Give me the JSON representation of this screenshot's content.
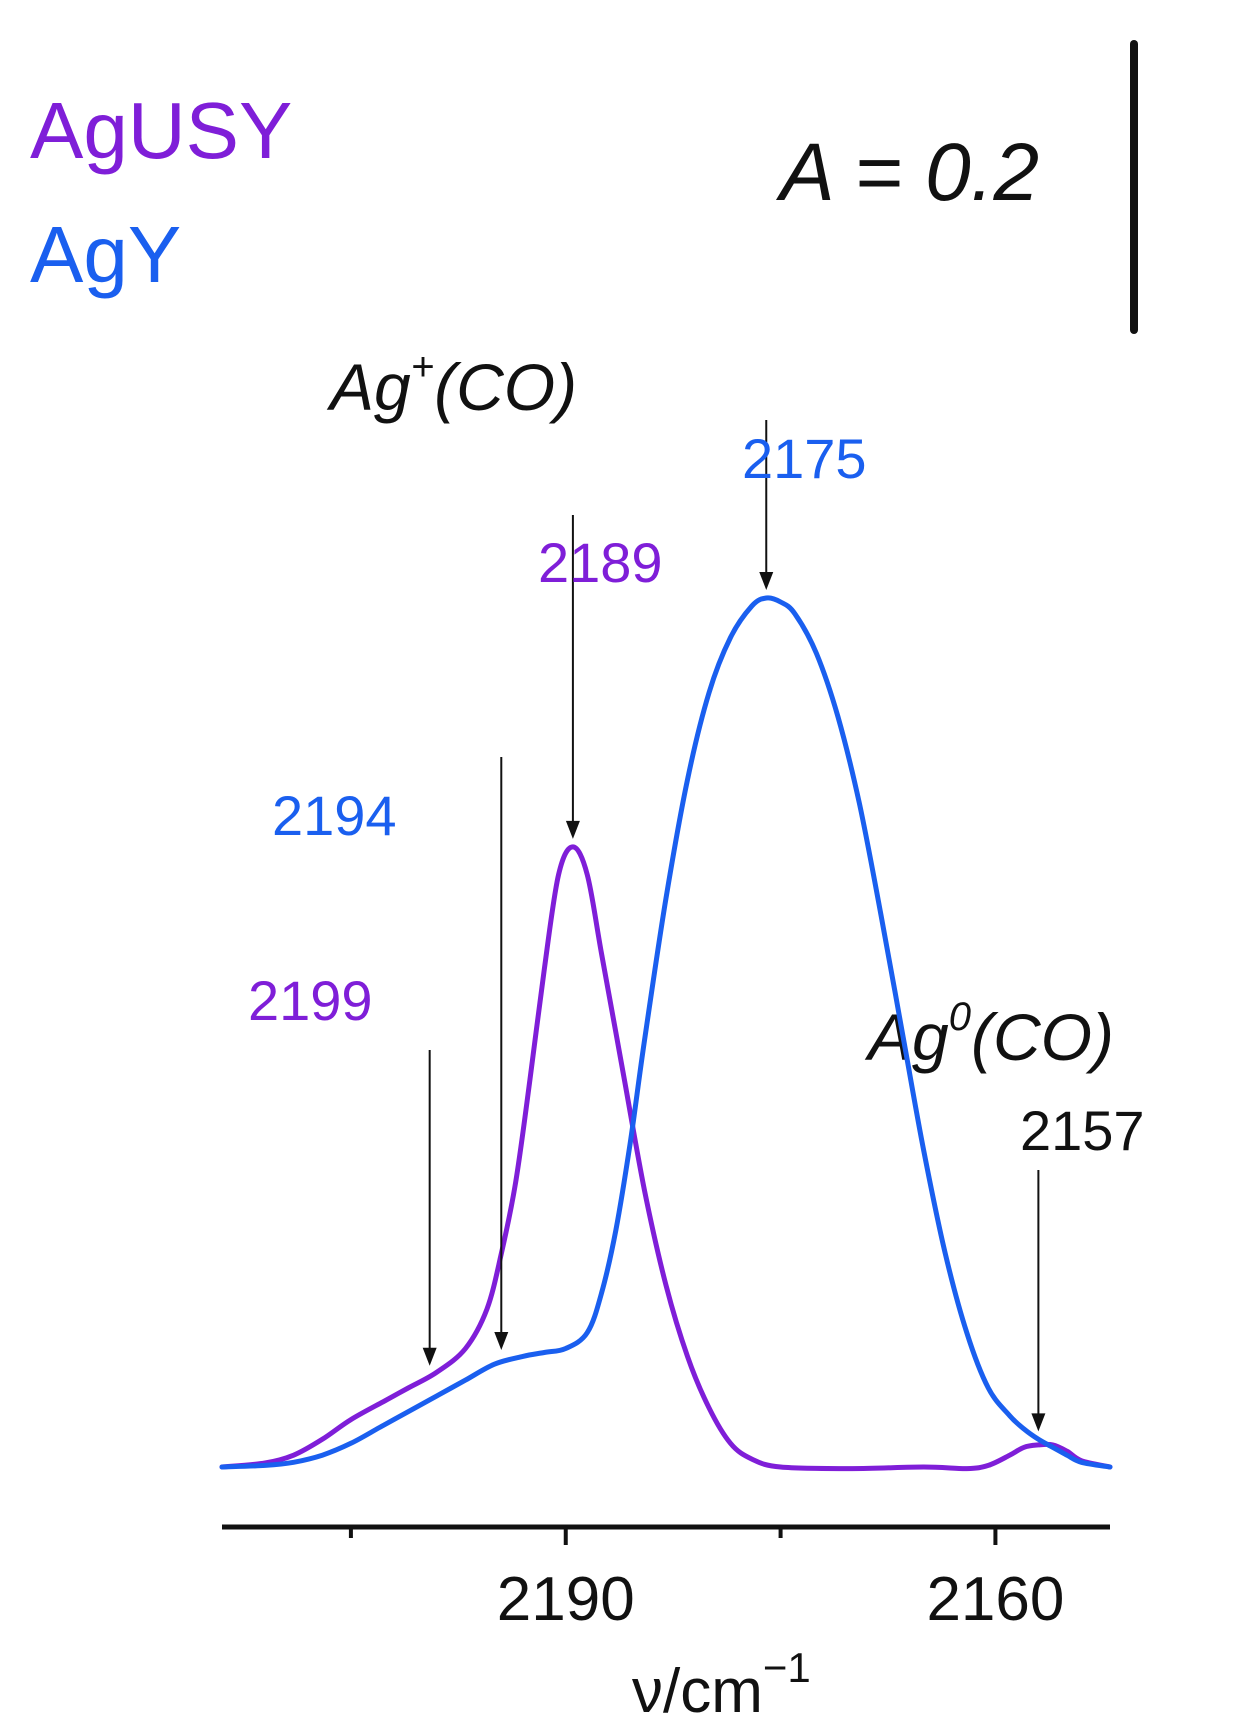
{
  "chart_data": {
    "type": "line",
    "title": "",
    "xlabel": "ν/cm",
    "xlabel_superscript": "−1",
    "ylabel": "",
    "xlim": [
      2214,
      2152
    ],
    "x_reversed": true,
    "xticks_labeled": [
      2190,
      2160
    ],
    "xticks_minor": [
      2205,
      2175
    ],
    "grid": false,
    "legend_position": "top-left",
    "scale_bar": {
      "label": "A = 0.2",
      "value": 0.2
    },
    "series": [
      {
        "name": "AgUSY",
        "color": "#7f1ed8",
        "points": [
          [
            2214,
            0.0
          ],
          [
            2211,
            0.005
          ],
          [
            2209,
            0.015
          ],
          [
            2207,
            0.035
          ],
          [
            2205,
            0.06
          ],
          [
            2202.5,
            0.085
          ],
          [
            2201,
            0.1
          ],
          [
            2199,
            0.12
          ],
          [
            2197,
            0.15
          ],
          [
            2195.5,
            0.2
          ],
          [
            2194.5,
            0.27
          ],
          [
            2193.5,
            0.36
          ],
          [
            2192.5,
            0.49
          ],
          [
            2191.5,
            0.63
          ],
          [
            2190.5,
            0.75
          ],
          [
            2189.5,
            0.785
          ],
          [
            2188.5,
            0.75
          ],
          [
            2187.5,
            0.65
          ],
          [
            2186,
            0.5
          ],
          [
            2184.5,
            0.35
          ],
          [
            2183,
            0.23
          ],
          [
            2181.5,
            0.14
          ],
          [
            2180,
            0.075
          ],
          [
            2178.5,
            0.03
          ],
          [
            2177,
            0.01
          ],
          [
            2175,
            0.0
          ],
          [
            2170,
            -0.002
          ],
          [
            2165,
            0.0
          ],
          [
            2162,
            -0.002
          ],
          [
            2160.5,
            0.002
          ],
          [
            2159,
            0.015
          ],
          [
            2158,
            0.025
          ],
          [
            2157,
            0.028
          ],
          [
            2156,
            0.028
          ],
          [
            2155,
            0.02
          ],
          [
            2154,
            0.008
          ],
          [
            2152,
            0.0
          ]
        ]
      },
      {
        "name": "AgY",
        "color": "#1a5fef",
        "points": [
          [
            2214,
            0.0
          ],
          [
            2211,
            0.002
          ],
          [
            2209,
            0.006
          ],
          [
            2207,
            0.015
          ],
          [
            2205,
            0.03
          ],
          [
            2203,
            0.05
          ],
          [
            2201,
            0.07
          ],
          [
            2199,
            0.09
          ],
          [
            2197,
            0.11
          ],
          [
            2195,
            0.13
          ],
          [
            2193,
            0.14
          ],
          [
            2191.5,
            0.145
          ],
          [
            2190,
            0.15
          ],
          [
            2188.5,
            0.17
          ],
          [
            2187.5,
            0.22
          ],
          [
            2186.5,
            0.3
          ],
          [
            2185.5,
            0.41
          ],
          [
            2184.5,
            0.54
          ],
          [
            2183,
            0.72
          ],
          [
            2181.5,
            0.87
          ],
          [
            2180,
            0.98
          ],
          [
            2178.5,
            1.05
          ],
          [
            2177,
            1.09
          ],
          [
            2176,
            1.1
          ],
          [
            2175,
            1.095
          ],
          [
            2174,
            1.08
          ],
          [
            2172.5,
            1.03
          ],
          [
            2171,
            0.95
          ],
          [
            2169.5,
            0.84
          ],
          [
            2168,
            0.7
          ],
          [
            2166.5,
            0.55
          ],
          [
            2165,
            0.4
          ],
          [
            2163.5,
            0.27
          ],
          [
            2162,
            0.17
          ],
          [
            2160.5,
            0.1
          ],
          [
            2159,
            0.065
          ],
          [
            2158,
            0.048
          ],
          [
            2157,
            0.035
          ],
          [
            2156,
            0.025
          ],
          [
            2155,
            0.015
          ],
          [
            2154,
            0.006
          ],
          [
            2152,
            0.0
          ]
        ]
      }
    ],
    "annotations": [
      {
        "label": "2199",
        "series": "AgUSY",
        "color": "#7f1ed8",
        "x": 2199.5,
        "y": 0.118
      },
      {
        "label": "2194",
        "series": "AgY",
        "color": "#1a5fef",
        "x": 2194.5,
        "y": 0.138
      },
      {
        "label": "2189",
        "series": "AgUSY",
        "color": "#7f1ed8",
        "x": 2189.5,
        "y": 0.785
      },
      {
        "label": "2175",
        "series": "AgY",
        "color": "#1a5fef",
        "x": 2176,
        "y": 1.1
      },
      {
        "label": "2157",
        "series": "AgY",
        "color": "#111111",
        "x": 2157,
        "y": 0.035
      }
    ],
    "band_labels": [
      {
        "base": "Ag",
        "sup": "+",
        "rest": "(CO)"
      },
      {
        "base": "Ag",
        "sup": "0",
        "rest": "(CO)"
      }
    ]
  }
}
